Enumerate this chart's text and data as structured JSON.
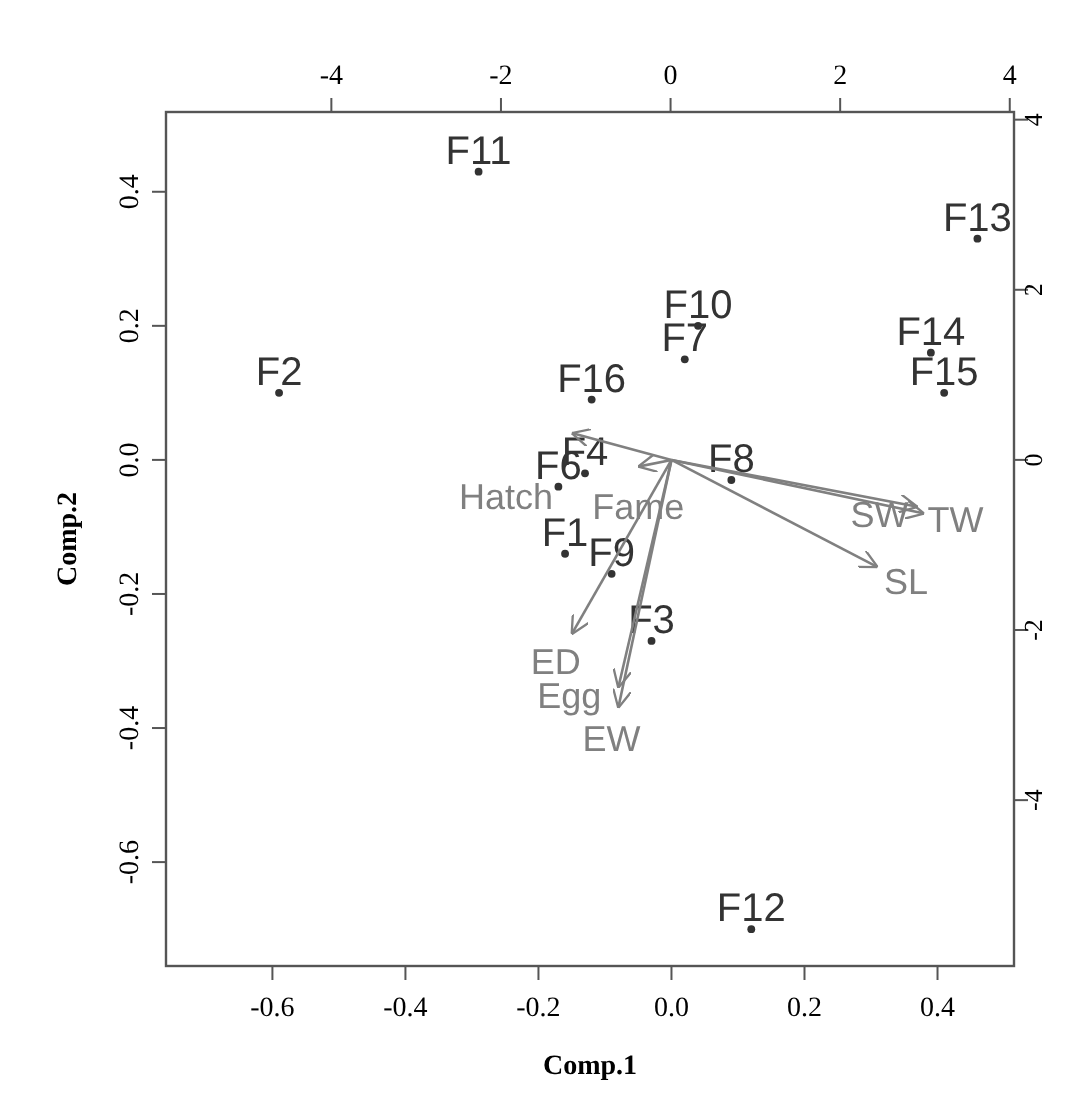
{
  "chart_data": {
    "type": "scatter",
    "xlabel": "Comp.1",
    "ylabel": "Comp.2",
    "xlim": [
      -0.76,
      0.515
    ],
    "ylim": [
      -0.755,
      0.519
    ],
    "xticks": [
      -0.6,
      -0.4,
      -0.2,
      {
        "value": 0,
        "label": "0.0"
      },
      0.2,
      0.4
    ],
    "yticks": [
      -0.6,
      -0.4,
      -0.2,
      {
        "value": 0,
        "label": "0.0"
      },
      0.2,
      0.4
    ],
    "x2lim": [
      -5.95,
      4.05
    ],
    "x2ticks": [
      -4,
      -2,
      0,
      2,
      4
    ],
    "y2lim": [
      -5.95,
      4.09
    ],
    "y2ticks": [
      -4,
      -2,
      0,
      2,
      4
    ],
    "grid": false,
    "legend": false,
    "line_style": "solid",
    "series": [
      {
        "marker": "circle",
        "color": "#333333",
        "x": [
          -0.29,
          -0.59,
          0.46,
          0.04,
          0.02,
          0.39,
          0.41,
          -0.12,
          -0.13,
          -0.17,
          0.09,
          -0.16,
          -0.09,
          -0.03,
          0.12
        ],
        "values": [
          0.43,
          0.1,
          0.33,
          0.2,
          0.15,
          0.16,
          0.1,
          0.09,
          -0.02,
          -0.04,
          -0.03,
          -0.14,
          -0.17,
          -0.27,
          -0.7
        ],
        "value_labels": [
          "F11",
          "F2",
          "F13",
          "F10",
          "F7",
          "F14",
          "F15",
          "F16",
          "F4",
          "F6",
          "F8",
          "F1",
          "F9",
          "F3",
          "F12"
        ]
      },
      {
        "name": "TW",
        "type": "line",
        "color": "#808080",
        "x": [
          0,
          0.38
        ],
        "values": [
          0,
          -0.08
        ]
      },
      {
        "name": "SW",
        "type": "line",
        "color": "#808080",
        "x": [
          0,
          0.37
        ],
        "values": [
          0,
          -0.07
        ]
      },
      {
        "name": "SL",
        "type": "line",
        "color": "#808080",
        "x": [
          0,
          0.31
        ],
        "values": [
          0,
          -0.16
        ]
      },
      {
        "name": "ED",
        "type": "line",
        "color": "#808080",
        "x": [
          0,
          -0.15
        ],
        "values": [
          0,
          -0.26
        ]
      },
      {
        "name": "Egg",
        "type": "line",
        "color": "#808080",
        "x": [
          0,
          -0.08
        ],
        "values": [
          0,
          -0.34
        ]
      },
      {
        "name": "EW",
        "type": "line",
        "color": "#808080",
        "x": [
          0,
          -0.08
        ],
        "values": [
          0,
          -0.37
        ]
      },
      {
        "name": "Hatch",
        "type": "line",
        "color": "#808080",
        "x": [
          0,
          -0.15
        ],
        "values": [
          0,
          0.04
        ]
      },
      {
        "name": "Fame",
        "type": "line",
        "color": "#808080",
        "x": [
          0,
          -0.05
        ],
        "values": [
          0,
          -0.01
        ]
      }
    ]
  }
}
